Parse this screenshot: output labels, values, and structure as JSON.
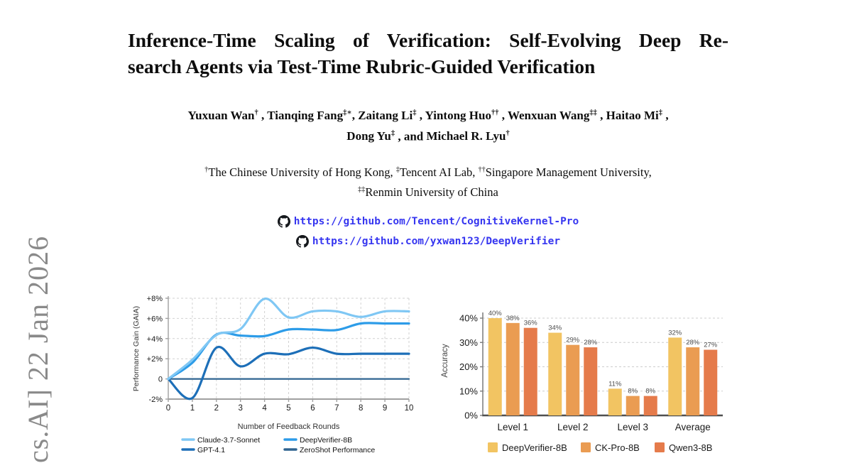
{
  "watermark": {
    "text": "cs.AI] 22 Jan 2026",
    "color": "#8a8a8a"
  },
  "title": {
    "line1": "Inference-Time Scaling of Verification: Self-Evolving Deep Re-",
    "line2": "search Agents via Test-Time Rubric-Guided Verification"
  },
  "authors": {
    "line1": [
      {
        "name": "Yuxuan Wan",
        "sup": "†",
        "sep": " , "
      },
      {
        "name": "Tianqing Fang",
        "sup": "‡∗",
        "sep": ", "
      },
      {
        "name": "Zaitang Li",
        "sup": "‡",
        "sep": " , "
      },
      {
        "name": "Yintong Huo",
        "sup": "††",
        "sep": " , "
      },
      {
        "name": "Wenxuan Wang",
        "sup": "‡‡",
        "sep": " , "
      },
      {
        "name": "Haitao Mi",
        "sup": "‡",
        "sep": " ,"
      }
    ],
    "line2": [
      {
        "name": "Dong Yu",
        "sup": "‡",
        "sep": " , and "
      },
      {
        "name": "Michael R. Lyu",
        "sup": "†",
        "sep": ""
      }
    ]
  },
  "affiliations": {
    "line1": [
      {
        "sup": "†",
        "text": "The Chinese University of Hong Kong, "
      },
      {
        "sup": "‡",
        "text": "Tencent AI Lab, "
      },
      {
        "sup": "††",
        "text": "Singapore Management University,"
      }
    ],
    "line2": [
      {
        "sup": "‡‡",
        "text": "Renmin University of China"
      }
    ]
  },
  "links": {
    "color": "#3636f0",
    "icon_color": "#15181c",
    "items": [
      {
        "url": "https://github.com/Tencent/CognitiveKernel-Pro"
      },
      {
        "url": "https://github.com/yxwan123/DeepVerifier"
      }
    ]
  },
  "chart_data": [
    {
      "type": "line",
      "title": "",
      "ylabel": "Performance Gain (GAIA)",
      "xlabel": "Number of Feedback Rounds",
      "x": [
        0,
        1,
        2,
        3,
        4,
        5,
        6,
        7,
        8,
        9,
        10
      ],
      "xtick_labels": [
        "0",
        "1",
        "2",
        "3",
        "4",
        "5",
        "6",
        "7",
        "8",
        "9",
        "10"
      ],
      "yticks": [
        {
          "v": -2,
          "label": "-2%"
        },
        {
          "v": 0,
          "label": "0"
        },
        {
          "v": 2,
          "label": "+2%"
        },
        {
          "v": 4,
          "label": "+4%"
        },
        {
          "v": 6,
          "label": "+6%"
        },
        {
          "v": 8,
          "label": "+8%"
        }
      ],
      "ylim": [
        -2,
        8
      ],
      "grid": true,
      "legend_position": "bottom-two-columns",
      "axis_color": "#a0a0a0",
      "grid_color": "#d2d2d2",
      "series": [
        {
          "name": "Claude-3.7-Sonnet",
          "color": "#7fc7f4",
          "width": 3.2,
          "values": [
            0,
            1.9,
            4.35,
            4.95,
            7.95,
            6.1,
            6.7,
            6.7,
            6.15,
            6.7,
            6.7
          ]
        },
        {
          "name": "GPT-4.1",
          "color": "#1d6fb8",
          "width": 3.2,
          "values": [
            0,
            -1.9,
            3.1,
            1.25,
            2.5,
            2.45,
            3.1,
            2.5,
            2.5,
            2.5,
            2.5
          ]
        },
        {
          "name": "DeepVerifier-8B",
          "color": "#2d9ce8",
          "width": 3.2,
          "values": [
            0,
            1.6,
            4.4,
            4.3,
            4.25,
            4.9,
            4.9,
            4.85,
            5.5,
            5.5,
            5.5
          ]
        },
        {
          "name": "ZeroShot Performance",
          "color": "#2f6490",
          "width": 2.2,
          "values": [
            0,
            0,
            0,
            0,
            0,
            0,
            0,
            0,
            0,
            0,
            0
          ]
        }
      ]
    },
    {
      "type": "bar",
      "title": "",
      "ylabel": "Accuracy",
      "xlabel": "",
      "categories": [
        "Level 1",
        "Level 2",
        "Level 3",
        "Average"
      ],
      "yticks": [
        {
          "v": 0,
          "label": "0%"
        },
        {
          "v": 10,
          "label": "10%"
        },
        {
          "v": 20,
          "label": "20%"
        },
        {
          "v": 30,
          "label": "30%"
        },
        {
          "v": 40,
          "label": "40%"
        }
      ],
      "ylim": [
        0,
        40
      ],
      "grid": true,
      "bar_label_suffix": "%",
      "legend_position": "bottom",
      "axis_color": "#4f4f4f",
      "grid_color": "#cccccc",
      "series": [
        {
          "name": "DeepVerifier-8B",
          "color": "#f2c462",
          "values": [
            40,
            34,
            11,
            32
          ]
        },
        {
          "name": "CK-Pro-8B",
          "color": "#ea9c52",
          "values": [
            38,
            29,
            8,
            28
          ]
        },
        {
          "name": "Qwen3-8B",
          "color": "#e57b4b",
          "values": [
            36,
            28,
            8,
            27
          ]
        }
      ]
    }
  ]
}
